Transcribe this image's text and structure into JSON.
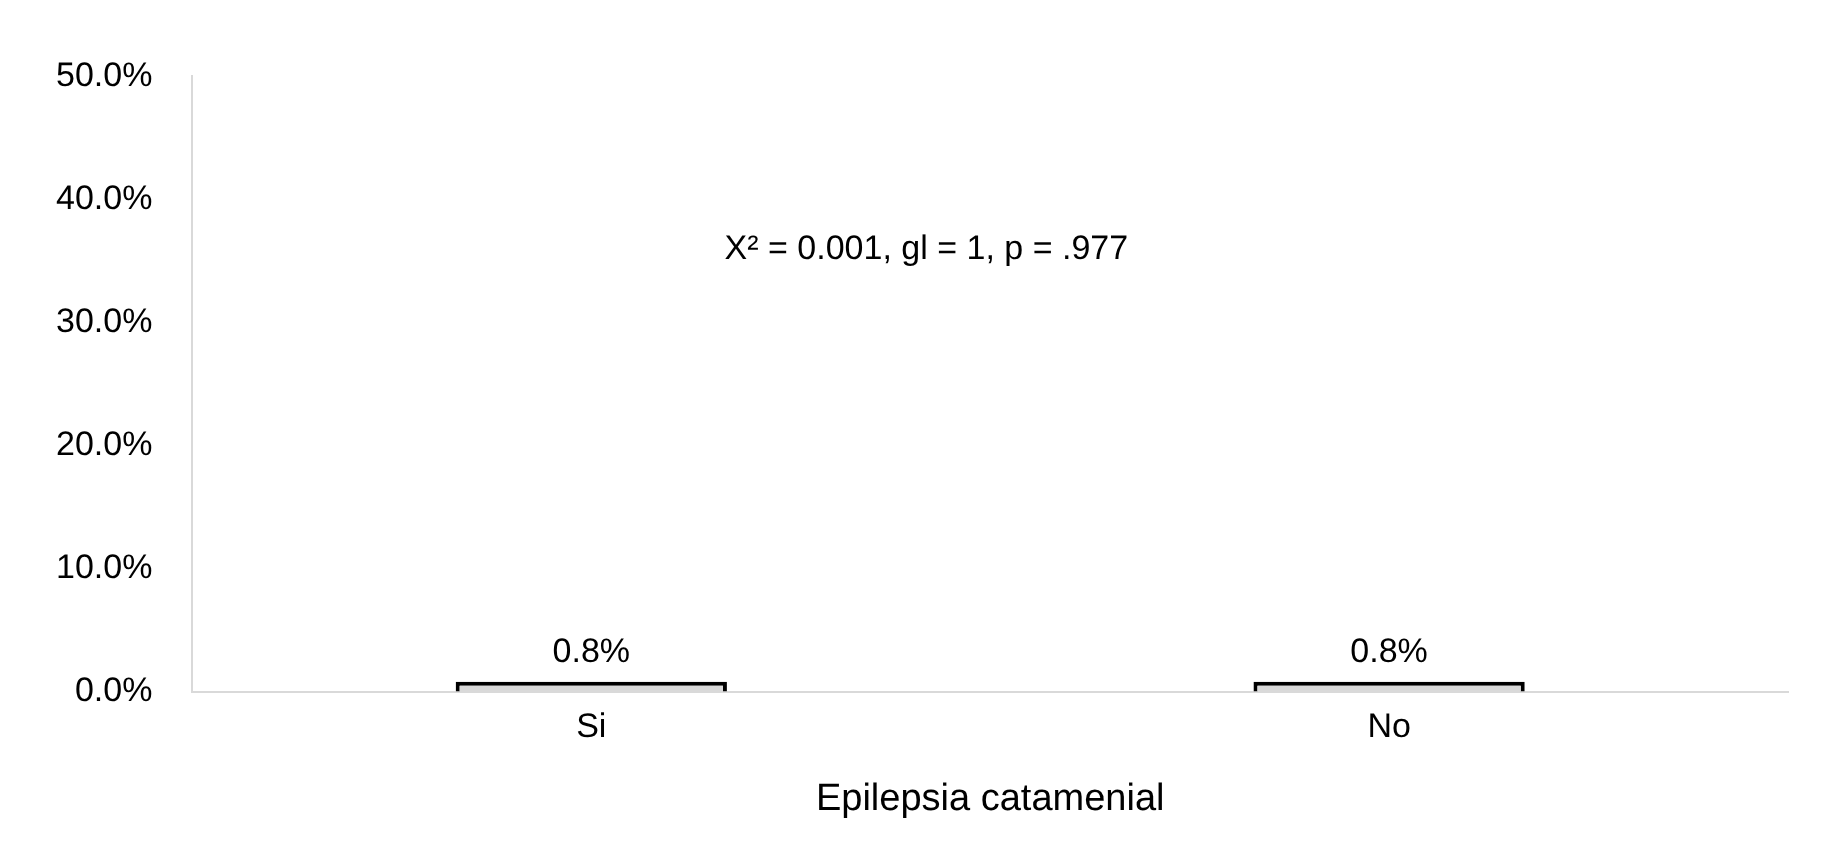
{
  "chart_data": {
    "type": "bar",
    "xlabel": "Epilepsia catamenial",
    "categories": [
      "Si",
      "No"
    ],
    "values": [
      0.8,
      0.8
    ],
    "color": "#d9d9d9",
    "value_labels": [
      "0.8%",
      "0.8%"
    ],
    "ylim": [
      0,
      50
    ],
    "yticks": [
      {
        "value": 0,
        "label": "0.0%"
      },
      {
        "value": 10,
        "label": "10.0%"
      },
      {
        "value": 20,
        "label": "20.0%"
      },
      {
        "value": 30,
        "label": "30.0%"
      },
      {
        "value": 40,
        "label": "40.0%"
      },
      {
        "value": 50,
        "label": "50.0%"
      }
    ],
    "grid": false,
    "legend": false,
    "annotations": [
      "Χ² = 0.001, gl = 1, p = .977"
    ]
  }
}
